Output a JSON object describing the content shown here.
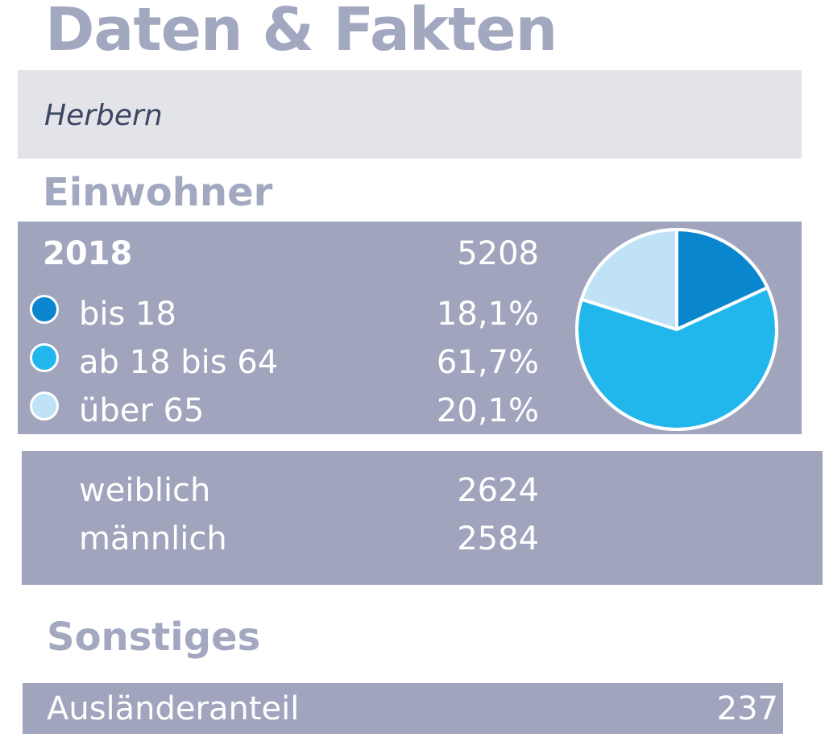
{
  "title": "Daten & Fakten",
  "place": "Herbern",
  "einwohner": {
    "heading": "Einwohner",
    "year": "2018",
    "total": "5208",
    "age_groups": [
      {
        "label": "bis 18",
        "value_text": "18,1%",
        "color": "#0a86cf"
      },
      {
        "label": "ab 18 bis 64",
        "value_text": "61,7%",
        "color": "#21b7ec"
      },
      {
        "label": "über 65",
        "value_text": "20,1%",
        "color": "#bfe2f6"
      }
    ],
    "gender": [
      {
        "label": "weiblich",
        "value": "2624"
      },
      {
        "label": "männlich",
        "value": "2584"
      }
    ]
  },
  "sonstiges": {
    "heading": "Sonstiges",
    "label": "Ausländeranteil",
    "value": "237"
  },
  "chart_data": {
    "type": "pie",
    "title": "",
    "categories": [
      "bis 18",
      "ab 18 bis 64",
      "über 65"
    ],
    "values": [
      18.1,
      61.7,
      20.1
    ],
    "colors": [
      "#0a86cf",
      "#21b7ec",
      "#bfe2f6"
    ],
    "legend": "left"
  }
}
